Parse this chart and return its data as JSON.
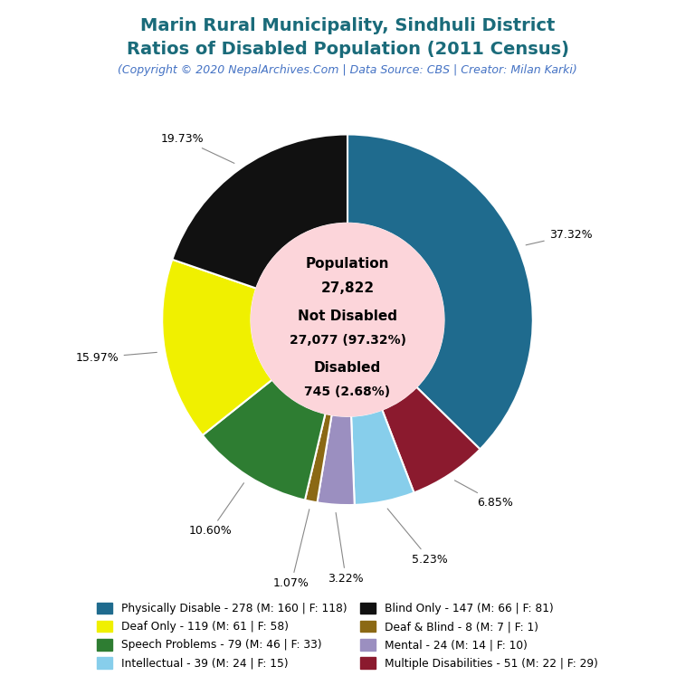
{
  "title_line1": "Marin Rural Municipality, Sindhuli District",
  "title_line2": "Ratios of Disabled Population (2011 Census)",
  "subtitle": "(Copyright © 2020 NepalArchives.Com | Data Source: CBS | Creator: Milan Karki)",
  "title_color": "#1a6b7a",
  "subtitle_color": "#4472c4",
  "center_bg_color": "#fcd5da",
  "outer_slices": [
    {
      "label": "Physically Disable - 278 (M: 160 | F: 118)",
      "value": 278,
      "pct": "37.32%",
      "color": "#1f6b8e"
    },
    {
      "label": "Multiple Disabilities - 51 (M: 22 | F: 29)",
      "value": 51,
      "pct": "6.85%",
      "color": "#8b1a2e"
    },
    {
      "label": "Intellectual - 39 (M: 24 | F: 15)",
      "value": 39,
      "pct": "5.23%",
      "color": "#87ceeb"
    },
    {
      "label": "Mental - 24 (M: 14 | F: 10)",
      "value": 24,
      "pct": "3.22%",
      "color": "#9b8fc0"
    },
    {
      "label": "Deaf & Blind - 8 (M: 7 | F: 1)",
      "value": 8,
      "pct": "1.07%",
      "color": "#8b6914"
    },
    {
      "label": "Speech Problems - 79 (M: 46 | F: 33)",
      "value": 79,
      "pct": "10.60%",
      "color": "#2e7d32"
    },
    {
      "label": "Deaf Only - 119 (M: 61 | F: 58)",
      "value": 119,
      "pct": "15.97%",
      "color": "#f0f000"
    },
    {
      "label": "Blind Only - 147 (M: 66 | F: 81)",
      "value": 147,
      "pct": "19.73%",
      "color": "#111111"
    }
  ],
  "legend_items": [
    {
      "label": "Physically Disable - 278 (M: 160 | F: 118)",
      "color": "#1f6b8e"
    },
    {
      "label": "Deaf Only - 119 (M: 61 | F: 58)",
      "color": "#f0f000"
    },
    {
      "label": "Speech Problems - 79 (M: 46 | F: 33)",
      "color": "#2e7d32"
    },
    {
      "label": "Intellectual - 39 (M: 24 | F: 15)",
      "color": "#87ceeb"
    },
    {
      "label": "Blind Only - 147 (M: 66 | F: 81)",
      "color": "#111111"
    },
    {
      "label": "Deaf & Blind - 8 (M: 7 | F: 1)",
      "color": "#8b6914"
    },
    {
      "label": "Mental - 24 (M: 14 | F: 10)",
      "color": "#9b8fc0"
    },
    {
      "label": "Multiple Disabilities - 51 (M: 22 | F: 29)",
      "color": "#8b1a2e"
    }
  ],
  "center_lines": [
    "Population",
    "27,822",
    "",
    "Not Disabled",
    "27,077 (97.32%)",
    "",
    "Disabled",
    "745 (2.68%)"
  ]
}
